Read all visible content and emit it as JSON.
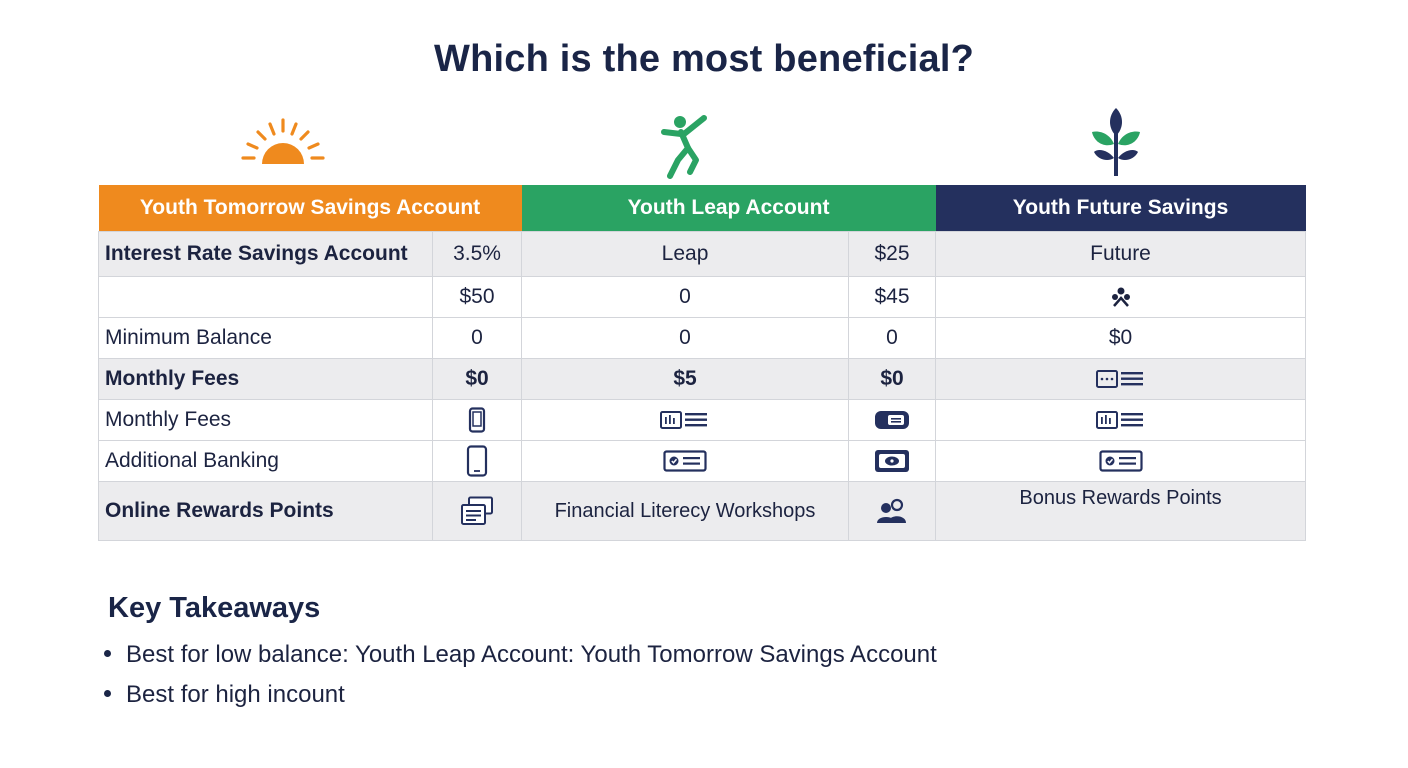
{
  "title": "Which is the most beneficial?",
  "icons": {
    "account1": "sunrise-icon",
    "account2": "runner-icon",
    "account3": "sprout-icon"
  },
  "colors": {
    "account1": "#ef8a1e",
    "account2": "#2aa363",
    "account3": "#24305e"
  },
  "table": {
    "headers": [
      "Youth Tomorrow Savings Account",
      "Youth Leap Account",
      "Youth Future Savings"
    ],
    "rows": [
      {
        "label": "Interest Rate Savings Account",
        "c1": "3.5%",
        "c2": "Leap",
        "c3": "$25",
        "c4": "Future"
      },
      {
        "label": "",
        "c1": "$50",
        "c2": "0",
        "c3": "$45",
        "c4_icon": "people-icon"
      },
      {
        "label": "Minimum Balance",
        "c1": "0",
        "c2": "0",
        "c3": "0",
        "c4": "$0"
      },
      {
        "label": "Monthly Fees",
        "c1": "$0",
        "c2": "$5",
        "c3": "$0",
        "c4_icon": "statement-icon"
      },
      {
        "label": "Monthly Fees",
        "c1_icon": "phone-icon",
        "c2_icon": "statement-icon",
        "c3_icon": "card-icon",
        "c4_icon": "statement-icon"
      },
      {
        "label": "Additional Banking",
        "c1_icon": "mobile-icon",
        "c2_icon": "check-icon",
        "c3_icon": "wallet-icon",
        "c4_icon": "check-icon"
      },
      {
        "label": "Online Rewards Points",
        "c1_icon": "documents-icon",
        "c2": "Financial Literecy Workshops",
        "c3_icon": "users-icon",
        "c4": "Bonus Rewards Points"
      }
    ]
  },
  "takeaways": {
    "title": "Key Takeaways",
    "items": [
      "Best for low balance: Youth Leap Account: Youth Tomorrow Savings Account",
      "Best for high incount"
    ]
  }
}
